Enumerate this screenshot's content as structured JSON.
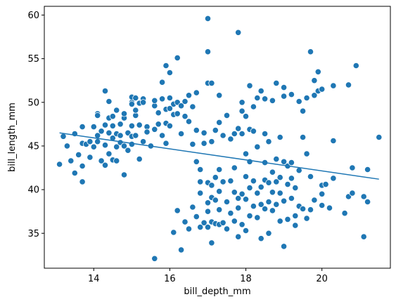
{
  "chart_data": {
    "type": "scatter",
    "xlabel": "bill_depth_mm",
    "ylabel": "bill_length_mm",
    "xlim": [
      12.7,
      21.8
    ],
    "ylim": [
      31.0,
      61.0
    ],
    "x_ticks": [
      14,
      16,
      18,
      20
    ],
    "y_ticks": [
      35,
      40,
      45,
      50,
      55,
      60
    ],
    "grid": false,
    "legend": "none",
    "colors": {
      "points": "#1f77b4",
      "point_edge": "#ffffff",
      "regression_line": "#1f77b4",
      "axes": "#000000"
    },
    "regression_line": {
      "x": [
        13.1,
        21.5
      ],
      "y": [
        46.5,
        41.2
      ]
    },
    "points": [
      [
        13.1,
        42.9
      ],
      [
        13.2,
        46.1
      ],
      [
        13.3,
        45.0
      ],
      [
        13.4,
        43.3
      ],
      [
        13.5,
        41.9
      ],
      [
        13.5,
        46.4
      ],
      [
        13.6,
        44.0
      ],
      [
        13.7,
        42.7
      ],
      [
        13.7,
        40.9
      ],
      [
        13.7,
        45.3
      ],
      [
        13.7,
        47.2
      ],
      [
        13.8,
        45.2
      ],
      [
        13.9,
        45.5
      ],
      [
        13.9,
        43.7
      ],
      [
        14.0,
        47.2
      ],
      [
        14.0,
        44.9
      ],
      [
        14.1,
        48.7
      ],
      [
        14.1,
        48.5
      ],
      [
        14.1,
        46.2
      ],
      [
        14.1,
        45.5
      ],
      [
        14.2,
        46.7
      ],
      [
        14.2,
        43.3
      ],
      [
        14.3,
        45.1
      ],
      [
        14.3,
        47.4
      ],
      [
        14.3,
        51.3
      ],
      [
        14.3,
        42.8
      ],
      [
        14.4,
        48.2
      ],
      [
        14.4,
        46.5
      ],
      [
        14.4,
        50.1
      ],
      [
        14.4,
        44.1
      ],
      [
        14.5,
        47.3
      ],
      [
        14.5,
        43.4
      ],
      [
        14.5,
        45.9
      ],
      [
        14.5,
        48.4
      ],
      [
        14.6,
        46.4
      ],
      [
        14.6,
        49.1
      ],
      [
        14.6,
        43.3
      ],
      [
        14.6,
        44.9
      ],
      [
        14.7,
        47.5
      ],
      [
        14.7,
        45.4
      ],
      [
        14.7,
        46.2
      ],
      [
        14.8,
        48.2
      ],
      [
        14.8,
        45.0
      ],
      [
        14.8,
        41.7
      ],
      [
        14.8,
        48.7
      ],
      [
        14.9,
        46.5
      ],
      [
        14.9,
        44.5
      ],
      [
        15.0,
        50.0
      ],
      [
        15.0,
        47.3
      ],
      [
        15.0,
        46.1
      ],
      [
        15.0,
        49.8
      ],
      [
        15.0,
        50.6
      ],
      [
        15.0,
        45.2
      ],
      [
        15.1,
        48.5
      ],
      [
        15.1,
        49.1
      ],
      [
        15.1,
        46.2
      ],
      [
        15.1,
        50.5
      ],
      [
        15.2,
        49.9
      ],
      [
        15.2,
        43.5
      ],
      [
        15.2,
        47.4
      ],
      [
        15.3,
        50.4
      ],
      [
        15.3,
        50.0
      ],
      [
        15.3,
        45.5
      ],
      [
        15.4,
        47.2
      ],
      [
        15.4,
        46.6
      ],
      [
        15.5,
        45.0
      ],
      [
        15.6,
        49.6
      ],
      [
        15.6,
        46.9
      ],
      [
        15.6,
        32.1
      ],
      [
        15.6,
        50.2
      ],
      [
        15.7,
        47.5
      ],
      [
        15.7,
        48.8
      ],
      [
        15.8,
        50.4
      ],
      [
        15.8,
        52.3
      ],
      [
        15.8,
        46.2
      ],
      [
        15.9,
        54.2
      ],
      [
        15.9,
        49.2
      ],
      [
        15.9,
        47.6
      ],
      [
        15.9,
        45.3
      ],
      [
        16.0,
        49.3
      ],
      [
        16.0,
        53.4
      ],
      [
        16.0,
        50.5
      ],
      [
        16.0,
        47.3
      ],
      [
        16.1,
        48.6
      ],
      [
        16.1,
        35.1
      ],
      [
        16.1,
        49.8
      ],
      [
        16.2,
        55.1
      ],
      [
        16.2,
        50.0
      ],
      [
        16.2,
        37.6
      ],
      [
        16.2,
        48.7
      ],
      [
        16.3,
        49.6
      ],
      [
        16.3,
        33.1
      ],
      [
        16.3,
        46.4
      ],
      [
        16.4,
        50.1
      ],
      [
        16.4,
        36.3
      ],
      [
        16.4,
        48.4
      ],
      [
        16.5,
        50.8
      ],
      [
        16.5,
        35.5
      ],
      [
        16.5,
        47.8
      ],
      [
        16.6,
        49.5
      ],
      [
        16.6,
        38.0
      ],
      [
        16.6,
        45.2
      ],
      [
        16.7,
        51.1
      ],
      [
        16.7,
        36.9
      ],
      [
        16.7,
        43.2
      ],
      [
        16.7,
        46.8
      ],
      [
        16.8,
        42.3
      ],
      [
        16.8,
        35.7
      ],
      [
        16.8,
        40.9
      ],
      [
        16.8,
        39.6
      ],
      [
        16.9,
        36.2
      ],
      [
        16.9,
        46.5
      ],
      [
        16.9,
        45.3
      ],
      [
        17.0,
        37.5
      ],
      [
        17.0,
        40.8
      ],
      [
        17.0,
        38.5
      ],
      [
        17.0,
        35.7
      ],
      [
        17.0,
        52.2
      ],
      [
        17.0,
        55.8
      ],
      [
        17.0,
        59.6
      ],
      [
        17.1,
        36.3
      ],
      [
        17.1,
        40.5
      ],
      [
        17.1,
        39.1
      ],
      [
        17.1,
        33.9
      ],
      [
        17.1,
        52.2
      ],
      [
        17.1,
        45.5
      ],
      [
        17.2,
        36.1
      ],
      [
        17.2,
        38.8
      ],
      [
        17.2,
        41.4
      ],
      [
        17.2,
        46.8
      ],
      [
        17.3,
        36.0
      ],
      [
        17.3,
        37.7
      ],
      [
        17.3,
        39.8
      ],
      [
        17.3,
        42.3
      ],
      [
        17.3,
        47.7
      ],
      [
        17.3,
        50.8
      ],
      [
        17.4,
        36.2
      ],
      [
        17.4,
        40.9
      ],
      [
        17.4,
        46.2
      ],
      [
        17.5,
        38.6
      ],
      [
        17.5,
        35.5
      ],
      [
        17.5,
        48.5
      ],
      [
        17.6,
        41.0
      ],
      [
        17.6,
        37.3
      ],
      [
        17.6,
        45.8
      ],
      [
        17.7,
        39.7
      ],
      [
        17.7,
        36.4
      ],
      [
        17.7,
        42.5
      ],
      [
        17.7,
        46.4
      ],
      [
        17.8,
        39.0
      ],
      [
        17.8,
        34.6
      ],
      [
        17.8,
        37.9
      ],
      [
        17.8,
        47.0
      ],
      [
        17.8,
        58.0
      ],
      [
        17.9,
        39.5
      ],
      [
        17.9,
        36.0
      ],
      [
        17.9,
        49.0
      ],
      [
        17.9,
        50.0
      ],
      [
        17.9,
        46.4
      ],
      [
        18.0,
        38.9
      ],
      [
        18.0,
        35.3
      ],
      [
        18.0,
        41.5
      ],
      [
        18.0,
        44.1
      ],
      [
        18.0,
        48.4
      ],
      [
        18.1,
        40.2
      ],
      [
        18.1,
        37.0
      ],
      [
        18.1,
        43.2
      ],
      [
        18.1,
        51.9
      ],
      [
        18.1,
        46.9
      ],
      [
        18.2,
        38.1
      ],
      [
        18.2,
        41.0
      ],
      [
        18.2,
        49.5
      ],
      [
        18.2,
        46.7
      ],
      [
        18.3,
        36.8
      ],
      [
        18.3,
        39.6
      ],
      [
        18.3,
        44.9
      ],
      [
        18.3,
        50.5
      ],
      [
        18.4,
        40.3
      ],
      [
        18.4,
        38.3
      ],
      [
        18.4,
        34.4
      ],
      [
        18.4,
        51.3
      ],
      [
        18.5,
        41.1
      ],
      [
        18.5,
        37.8
      ],
      [
        18.5,
        43.1
      ],
      [
        18.5,
        46.4
      ],
      [
        18.5,
        50.4
      ],
      [
        18.6,
        38.6
      ],
      [
        18.6,
        40.8
      ],
      [
        18.6,
        45.5
      ],
      [
        18.6,
        35.0
      ],
      [
        18.7,
        39.7
      ],
      [
        18.7,
        42.0
      ],
      [
        18.7,
        37.6
      ],
      [
        18.7,
        50.2
      ],
      [
        18.8,
        40.9
      ],
      [
        18.8,
        38.3
      ],
      [
        18.8,
        43.5
      ],
      [
        18.8,
        52.2
      ],
      [
        18.9,
        39.6
      ],
      [
        18.9,
        41.4
      ],
      [
        18.9,
        46.0
      ],
      [
        18.9,
        36.4
      ],
      [
        19.0,
        38.7
      ],
      [
        19.0,
        33.5
      ],
      [
        19.0,
        43.2
      ],
      [
        19.0,
        50.7
      ],
      [
        19.0,
        51.7
      ],
      [
        19.1,
        40.6
      ],
      [
        19.1,
        42.7
      ],
      [
        19.1,
        36.6
      ],
      [
        19.2,
        41.3
      ],
      [
        19.2,
        39.0
      ],
      [
        19.2,
        43.1
      ],
      [
        19.2,
        50.9
      ],
      [
        19.3,
        40.2
      ],
      [
        19.3,
        37.0
      ],
      [
        19.3,
        35.9
      ],
      [
        19.4,
        38.1
      ],
      [
        19.4,
        42.2
      ],
      [
        19.4,
        50.1
      ],
      [
        19.5,
        49.0
      ],
      [
        19.5,
        46.0
      ],
      [
        19.5,
        37.8
      ],
      [
        19.6,
        44.1
      ],
      [
        19.6,
        50.5
      ],
      [
        19.6,
        36.7
      ],
      [
        19.7,
        37.7
      ],
      [
        19.7,
        41.5
      ],
      [
        19.7,
        55.8
      ],
      [
        19.8,
        50.8
      ],
      [
        19.8,
        52.5
      ],
      [
        19.8,
        38.8
      ],
      [
        19.9,
        51.3
      ],
      [
        19.9,
        53.5
      ],
      [
        20.0,
        40.5
      ],
      [
        20.0,
        39.5
      ],
      [
        20.0,
        51.5
      ],
      [
        20.0,
        38.2
      ],
      [
        20.1,
        40.6
      ],
      [
        20.2,
        37.9
      ],
      [
        20.3,
        45.6
      ],
      [
        20.3,
        51.9
      ],
      [
        20.3,
        41.3
      ],
      [
        20.6,
        37.3
      ],
      [
        20.7,
        39.2
      ],
      [
        20.7,
        52.0
      ],
      [
        20.8,
        42.5
      ],
      [
        20.8,
        39.6
      ],
      [
        20.9,
        54.2
      ],
      [
        21.1,
        39.2
      ],
      [
        21.1,
        34.6
      ],
      [
        21.2,
        38.6
      ],
      [
        21.2,
        42.3
      ],
      [
        21.5,
        46.0
      ]
    ]
  }
}
